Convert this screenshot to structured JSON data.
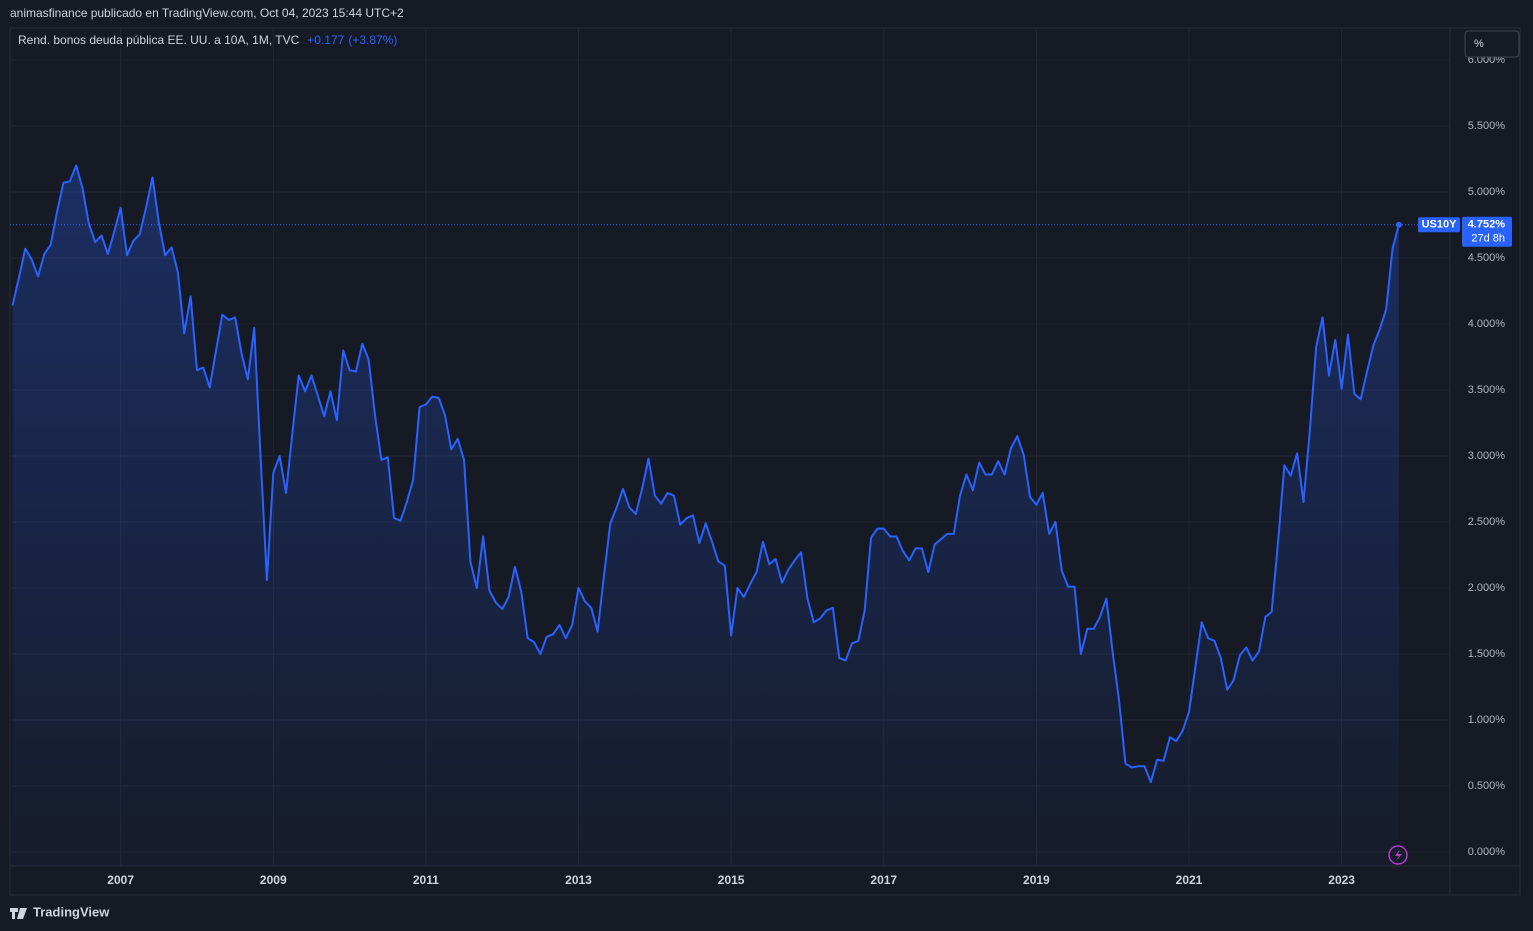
{
  "header": {
    "publisher": "animasfinance publicado en TradingView.com, Oct 04, 2023 15:44 UTC+2"
  },
  "scale_button": "%",
  "footer": {
    "brand": "TradingView"
  },
  "chart_data": {
    "type": "area",
    "title": "Rend. bonos deuda pública EE. UU. a 10A, 1M, TVC",
    "change_value": "+0.177",
    "change_percent": "(+3.87%)",
    "x": [
      2005.583,
      2005.667,
      2005.75,
      2005.833,
      2005.917,
      2006,
      2006.083,
      2006.167,
      2006.25,
      2006.333,
      2006.417,
      2006.5,
      2006.583,
      2006.667,
      2006.75,
      2006.833,
      2006.917,
      2007,
      2007.083,
      2007.167,
      2007.25,
      2007.333,
      2007.417,
      2007.5,
      2007.583,
      2007.667,
      2007.75,
      2007.833,
      2007.917,
      2008,
      2008.083,
      2008.167,
      2008.25,
      2008.333,
      2008.417,
      2008.5,
      2008.583,
      2008.667,
      2008.75,
      2008.833,
      2008.917,
      2009,
      2009.083,
      2009.167,
      2009.25,
      2009.333,
      2009.417,
      2009.5,
      2009.583,
      2009.667,
      2009.75,
      2009.833,
      2009.917,
      2010,
      2010.083,
      2010.167,
      2010.25,
      2010.333,
      2010.417,
      2010.5,
      2010.583,
      2010.667,
      2010.75,
      2010.833,
      2010.917,
      2011,
      2011.083,
      2011.167,
      2011.25,
      2011.333,
      2011.417,
      2011.5,
      2011.583,
      2011.667,
      2011.75,
      2011.833,
      2011.917,
      2012,
      2012.083,
      2012.167,
      2012.25,
      2012.333,
      2012.417,
      2012.5,
      2012.583,
      2012.667,
      2012.75,
      2012.833,
      2012.917,
      2013,
      2013.083,
      2013.167,
      2013.25,
      2013.333,
      2013.417,
      2013.5,
      2013.583,
      2013.667,
      2013.75,
      2013.833,
      2013.917,
      2014,
      2014.083,
      2014.167,
      2014.25,
      2014.333,
      2014.417,
      2014.5,
      2014.583,
      2014.667,
      2014.75,
      2014.833,
      2014.917,
      2015,
      2015.083,
      2015.167,
      2015.25,
      2015.333,
      2015.417,
      2015.5,
      2015.583,
      2015.667,
      2015.75,
      2015.833,
      2015.917,
      2016,
      2016.083,
      2016.167,
      2016.25,
      2016.333,
      2016.417,
      2016.5,
      2016.583,
      2016.667,
      2016.75,
      2016.833,
      2016.917,
      2017,
      2017.083,
      2017.167,
      2017.25,
      2017.333,
      2017.417,
      2017.5,
      2017.583,
      2017.667,
      2017.75,
      2017.833,
      2017.917,
      2018,
      2018.083,
      2018.167,
      2018.25,
      2018.333,
      2018.417,
      2018.5,
      2018.583,
      2018.667,
      2018.75,
      2018.833,
      2018.917,
      2019,
      2019.083,
      2019.167,
      2019.25,
      2019.333,
      2019.417,
      2019.5,
      2019.583,
      2019.667,
      2019.75,
      2019.833,
      2019.917,
      2020,
      2020.083,
      2020.167,
      2020.25,
      2020.333,
      2020.417,
      2020.5,
      2020.583,
      2020.667,
      2020.75,
      2020.833,
      2020.917,
      2021,
      2021.083,
      2021.167,
      2021.25,
      2021.333,
      2021.417,
      2021.5,
      2021.583,
      2021.667,
      2021.75,
      2021.833,
      2021.917,
      2022,
      2022.083,
      2022.167,
      2022.25,
      2022.333,
      2022.417,
      2022.5,
      2022.583,
      2022.667,
      2022.75,
      2022.833,
      2022.917,
      2023,
      2023.083,
      2023.167,
      2023.25,
      2023.333,
      2023.417,
      2023.5,
      2023.583,
      2023.667,
      2023.75
    ],
    "series": [
      {
        "name": "US10Y",
        "color": "#2962ff",
        "values": [
          4.14,
          4.35,
          4.57,
          4.49,
          4.36,
          4.53,
          4.6,
          4.85,
          5.07,
          5.08,
          5.2,
          5.03,
          4.76,
          4.62,
          4.67,
          4.53,
          4.7,
          4.88,
          4.52,
          4.63,
          4.68,
          4.88,
          5.11,
          4.77,
          4.52,
          4.58,
          4.39,
          3.93,
          4.21,
          3.65,
          3.67,
          3.52,
          3.8,
          4.07,
          4.03,
          4.05,
          3.78,
          3.58,
          3.97,
          3.0,
          2.06,
          2.87,
          3.0,
          2.72,
          3.17,
          3.61,
          3.49,
          3.61,
          3.46,
          3.3,
          3.49,
          3.27,
          3.8,
          3.65,
          3.64,
          3.85,
          3.73,
          3.31,
          2.97,
          2.99,
          2.53,
          2.51,
          2.65,
          2.82,
          3.37,
          3.39,
          3.45,
          3.44,
          3.31,
          3.05,
          3.13,
          2.97,
          2.2,
          2.0,
          2.39,
          1.98,
          1.89,
          1.84,
          1.93,
          2.16,
          1.97,
          1.62,
          1.59,
          1.5,
          1.63,
          1.65,
          1.72,
          1.62,
          1.72,
          2.0,
          1.9,
          1.85,
          1.67,
          2.09,
          2.49,
          2.61,
          2.75,
          2.61,
          2.56,
          2.75,
          2.98,
          2.7,
          2.64,
          2.72,
          2.7,
          2.48,
          2.53,
          2.55,
          2.34,
          2.49,
          2.35,
          2.2,
          2.17,
          1.64,
          2.0,
          1.93,
          2.03,
          2.12,
          2.35,
          2.18,
          2.22,
          2.04,
          2.14,
          2.21,
          2.27,
          1.92,
          1.74,
          1.77,
          1.83,
          1.85,
          1.47,
          1.45,
          1.58,
          1.6,
          1.83,
          2.38,
          2.45,
          2.45,
          2.39,
          2.39,
          2.28,
          2.21,
          2.3,
          2.3,
          2.12,
          2.33,
          2.37,
          2.41,
          2.41,
          2.7,
          2.86,
          2.74,
          2.95,
          2.86,
          2.86,
          2.96,
          2.86,
          3.06,
          3.15,
          3.01,
          2.69,
          2.63,
          2.72,
          2.41,
          2.5,
          2.13,
          2.01,
          2.01,
          1.5,
          1.69,
          1.69,
          1.78,
          1.92,
          1.51,
          1.15,
          0.67,
          0.64,
          0.65,
          0.65,
          0.53,
          0.7,
          0.69,
          0.87,
          0.84,
          0.92,
          1.06,
          1.4,
          1.74,
          1.62,
          1.6,
          1.47,
          1.23,
          1.3,
          1.49,
          1.55,
          1.45,
          1.52,
          1.78,
          1.82,
          2.35,
          2.93,
          2.85,
          3.02,
          2.65,
          3.19,
          3.83,
          4.05,
          3.61,
          3.88,
          3.51,
          3.92,
          3.47,
          3.43,
          3.64,
          3.84,
          3.96,
          4.11,
          4.57,
          4.752
        ],
        "last_label": "4.752%",
        "countdown": "27d 8h"
      }
    ],
    "xlim": [
      2005.55,
      2024.42
    ],
    "xticks": [
      2007,
      2009,
      2011,
      2013,
      2015,
      2017,
      2019,
      2021,
      2023
    ],
    "ylim": [
      -0.106,
      6.242
    ],
    "yticks": [
      {
        "value": 0,
        "label": "0.000%"
      },
      {
        "value": 0.5,
        "label": "0.500%"
      },
      {
        "value": 1,
        "label": "1.000%"
      },
      {
        "value": 1.5,
        "label": "1.500%"
      },
      {
        "value": 2,
        "label": "2.000%"
      },
      {
        "value": 2.5,
        "label": "2.500%"
      },
      {
        "value": 3,
        "label": "3.000%"
      },
      {
        "value": 3.5,
        "label": "3.500%"
      },
      {
        "value": 4,
        "label": "4.000%"
      },
      {
        "value": 4.5,
        "label": "4.500%"
      },
      {
        "value": 5,
        "label": "5.000%"
      },
      {
        "value": 5.5,
        "label": "5.500%"
      },
      {
        "value": 6,
        "label": "6.000%"
      }
    ],
    "grid": true
  }
}
